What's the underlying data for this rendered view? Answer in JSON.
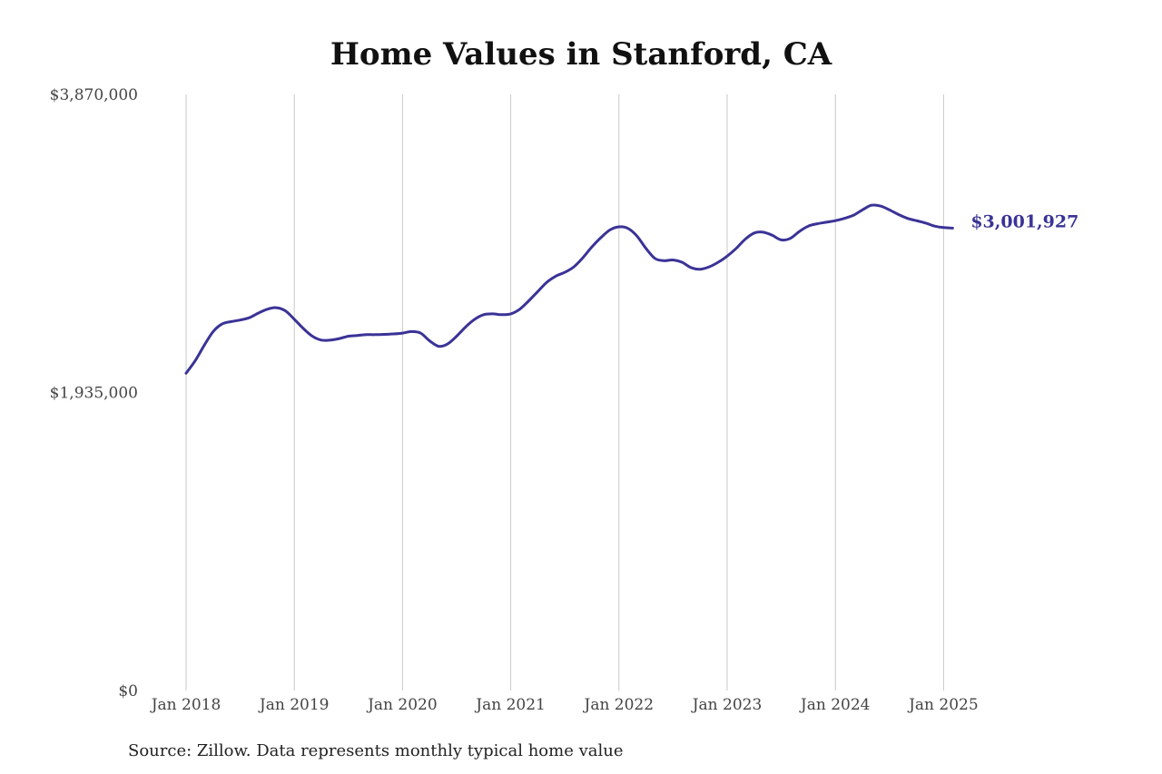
{
  "chart_data": {
    "type": "line",
    "title": "Home Values in Stanford, CA",
    "source": "Source: Zillow. Data represents monthly typical home value",
    "end_label": "$3,001,927",
    "line_color": "#3a3396",
    "grid_color": "#c8c8c8",
    "ylim": [
      0,
      3870000
    ],
    "y_ticks": [
      {
        "value": 0,
        "label": "$0"
      },
      {
        "value": 1935000,
        "label": "$1,935,000"
      },
      {
        "value": 3870000,
        "label": "$3,870,000"
      }
    ],
    "x_ticks": [
      {
        "year": 2018,
        "label": "Jan 2018"
      },
      {
        "year": 2019,
        "label": "Jan 2019"
      },
      {
        "year": 2020,
        "label": "Jan 2020"
      },
      {
        "year": 2021,
        "label": "Jan 2021"
      },
      {
        "year": 2022,
        "label": "Jan 2022"
      },
      {
        "year": 2023,
        "label": "Jan 2023"
      },
      {
        "year": 2024,
        "label": "Jan 2024"
      },
      {
        "year": 2025,
        "label": "Jan 2025"
      }
    ],
    "grid": "vertical",
    "series": [
      {
        "points": [
          [
            "2018-01",
            2060000
          ],
          [
            "2018-02",
            2140000
          ],
          [
            "2018-03",
            2240000
          ],
          [
            "2018-04",
            2330000
          ],
          [
            "2018-05",
            2380000
          ],
          [
            "2018-06",
            2395000
          ],
          [
            "2018-07",
            2405000
          ],
          [
            "2018-08",
            2420000
          ],
          [
            "2018-09",
            2450000
          ],
          [
            "2018-10",
            2475000
          ],
          [
            "2018-11",
            2485000
          ],
          [
            "2018-12",
            2465000
          ],
          [
            "2019-01",
            2410000
          ],
          [
            "2019-02",
            2350000
          ],
          [
            "2019-03",
            2300000
          ],
          [
            "2019-04",
            2275000
          ],
          [
            "2019-05",
            2275000
          ],
          [
            "2019-06",
            2285000
          ],
          [
            "2019-07",
            2300000
          ],
          [
            "2019-08",
            2305000
          ],
          [
            "2019-09",
            2310000
          ],
          [
            "2019-10",
            2310000
          ],
          [
            "2019-11",
            2312000
          ],
          [
            "2019-12",
            2315000
          ],
          [
            "2020-01",
            2320000
          ],
          [
            "2020-02",
            2330000
          ],
          [
            "2020-03",
            2320000
          ],
          [
            "2020-04",
            2270000
          ],
          [
            "2020-05",
            2235000
          ],
          [
            "2020-06",
            2250000
          ],
          [
            "2020-07",
            2300000
          ],
          [
            "2020-08",
            2360000
          ],
          [
            "2020-09",
            2410000
          ],
          [
            "2020-10",
            2440000
          ],
          [
            "2020-11",
            2445000
          ],
          [
            "2020-12",
            2440000
          ],
          [
            "2021-01",
            2445000
          ],
          [
            "2021-02",
            2475000
          ],
          [
            "2021-03",
            2530000
          ],
          [
            "2021-04",
            2590000
          ],
          [
            "2021-05",
            2650000
          ],
          [
            "2021-06",
            2690000
          ],
          [
            "2021-07",
            2715000
          ],
          [
            "2021-08",
            2750000
          ],
          [
            "2021-09",
            2810000
          ],
          [
            "2021-10",
            2880000
          ],
          [
            "2021-11",
            2940000
          ],
          [
            "2021-12",
            2990000
          ],
          [
            "2022-01",
            3010000
          ],
          [
            "2022-02",
            3000000
          ],
          [
            "2022-03",
            2950000
          ],
          [
            "2022-04",
            2870000
          ],
          [
            "2022-05",
            2805000
          ],
          [
            "2022-06",
            2790000
          ],
          [
            "2022-07",
            2795000
          ],
          [
            "2022-08",
            2780000
          ],
          [
            "2022-09",
            2745000
          ],
          [
            "2022-10",
            2735000
          ],
          [
            "2022-11",
            2750000
          ],
          [
            "2022-12",
            2780000
          ],
          [
            "2023-01",
            2820000
          ],
          [
            "2023-02",
            2870000
          ],
          [
            "2023-03",
            2930000
          ],
          [
            "2023-04",
            2970000
          ],
          [
            "2023-05",
            2975000
          ],
          [
            "2023-06",
            2955000
          ],
          [
            "2023-07",
            2925000
          ],
          [
            "2023-08",
            2935000
          ],
          [
            "2023-09",
            2980000
          ],
          [
            "2023-10",
            3015000
          ],
          [
            "2023-11",
            3030000
          ],
          [
            "2023-12",
            3040000
          ],
          [
            "2024-01",
            3050000
          ],
          [
            "2024-02",
            3065000
          ],
          [
            "2024-03",
            3085000
          ],
          [
            "2024-04",
            3120000
          ],
          [
            "2024-05",
            3150000
          ],
          [
            "2024-06",
            3145000
          ],
          [
            "2024-07",
            3120000
          ],
          [
            "2024-08",
            3090000
          ],
          [
            "2024-09",
            3065000
          ],
          [
            "2024-10",
            3050000
          ],
          [
            "2024-11",
            3035000
          ],
          [
            "2024-12",
            3015000
          ],
          [
            "2025-01",
            3005000
          ],
          [
            "2025-02",
            3001927
          ]
        ]
      }
    ]
  }
}
